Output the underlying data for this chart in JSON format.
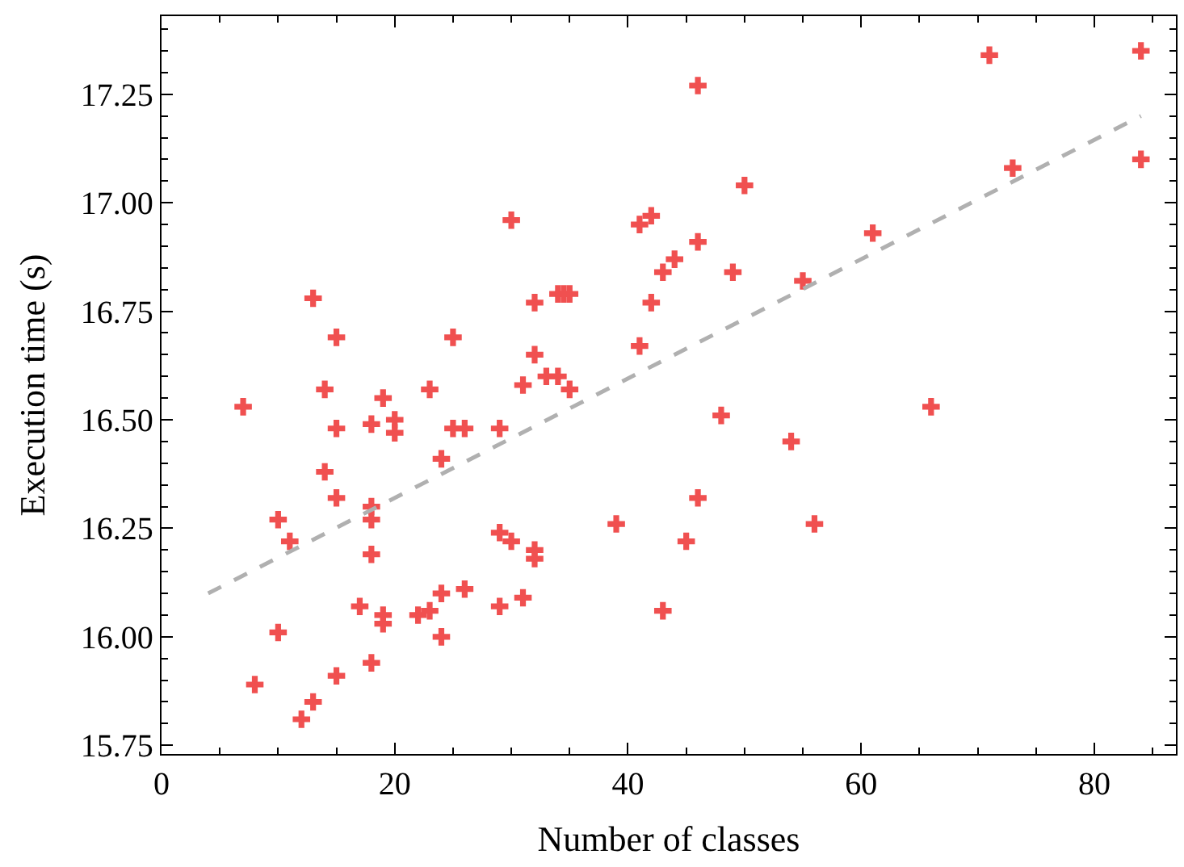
{
  "chart_data": {
    "type": "scatter",
    "xlabel": "Number of classes",
    "ylabel": "Execution time (s)",
    "xlim": [
      0,
      87
    ],
    "ylim": [
      15.73,
      17.43
    ],
    "xticks": [
      0,
      20,
      40,
      60,
      80
    ],
    "yticks": [
      {
        "value": 15.75,
        "label": "15.75"
      },
      {
        "value": 16.0,
        "label": "16.00"
      },
      {
        "value": 16.25,
        "label": "16.25"
      },
      {
        "value": 16.5,
        "label": "16.50"
      },
      {
        "value": 16.75,
        "label": "16.75"
      },
      {
        "value": 17.0,
        "label": "17.00"
      },
      {
        "value": 17.25,
        "label": "17.25"
      }
    ],
    "marker": "cross",
    "series": [
      {
        "color": "#f05050",
        "x": [
          7,
          8,
          10,
          10,
          11,
          12,
          13,
          13,
          14,
          14,
          15,
          15,
          15,
          15,
          17,
          18,
          18,
          18,
          18,
          18,
          19,
          19,
          19,
          20,
          20,
          22,
          23,
          23,
          24,
          24,
          24,
          25,
          25,
          26,
          26,
          29,
          29,
          29,
          30,
          30,
          31,
          31,
          32,
          32,
          32,
          32,
          33,
          34,
          34,
          34.5,
          35,
          35,
          39,
          41,
          41,
          42,
          42,
          43,
          43,
          44,
          45,
          46,
          46,
          46,
          48,
          49,
          50,
          54,
          55,
          56,
          61,
          66,
          71,
          73,
          84,
          84
        ],
        "values": [
          16.53,
          15.89,
          16.27,
          16.01,
          16.22,
          15.81,
          16.78,
          15.85,
          16.57,
          16.38,
          16.69,
          16.48,
          16.32,
          15.91,
          16.07,
          16.49,
          16.3,
          16.27,
          16.19,
          15.94,
          16.55,
          16.05,
          16.03,
          16.5,
          16.47,
          16.05,
          16.57,
          16.06,
          16.41,
          16.1,
          16.0,
          16.69,
          16.48,
          16.48,
          16.11,
          16.48,
          16.24,
          16.07,
          16.96,
          16.22,
          16.58,
          16.09,
          16.77,
          16.65,
          16.2,
          16.18,
          16.6,
          16.79,
          16.6,
          16.79,
          16.79,
          16.57,
          16.26,
          16.95,
          16.67,
          16.97,
          16.77,
          16.84,
          16.06,
          16.87,
          16.22,
          17.27,
          16.91,
          16.32,
          16.51,
          16.84,
          17.04,
          16.45,
          16.82,
          16.26,
          16.93,
          16.53,
          17.34,
          17.08,
          17.35,
          17.1
        ]
      },
      {
        "type": "line",
        "color": "#b0b0b0",
        "line_style": "dashed",
        "marker": "none",
        "x": [
          4,
          84
        ],
        "values": [
          16.1,
          17.2
        ]
      }
    ]
  }
}
